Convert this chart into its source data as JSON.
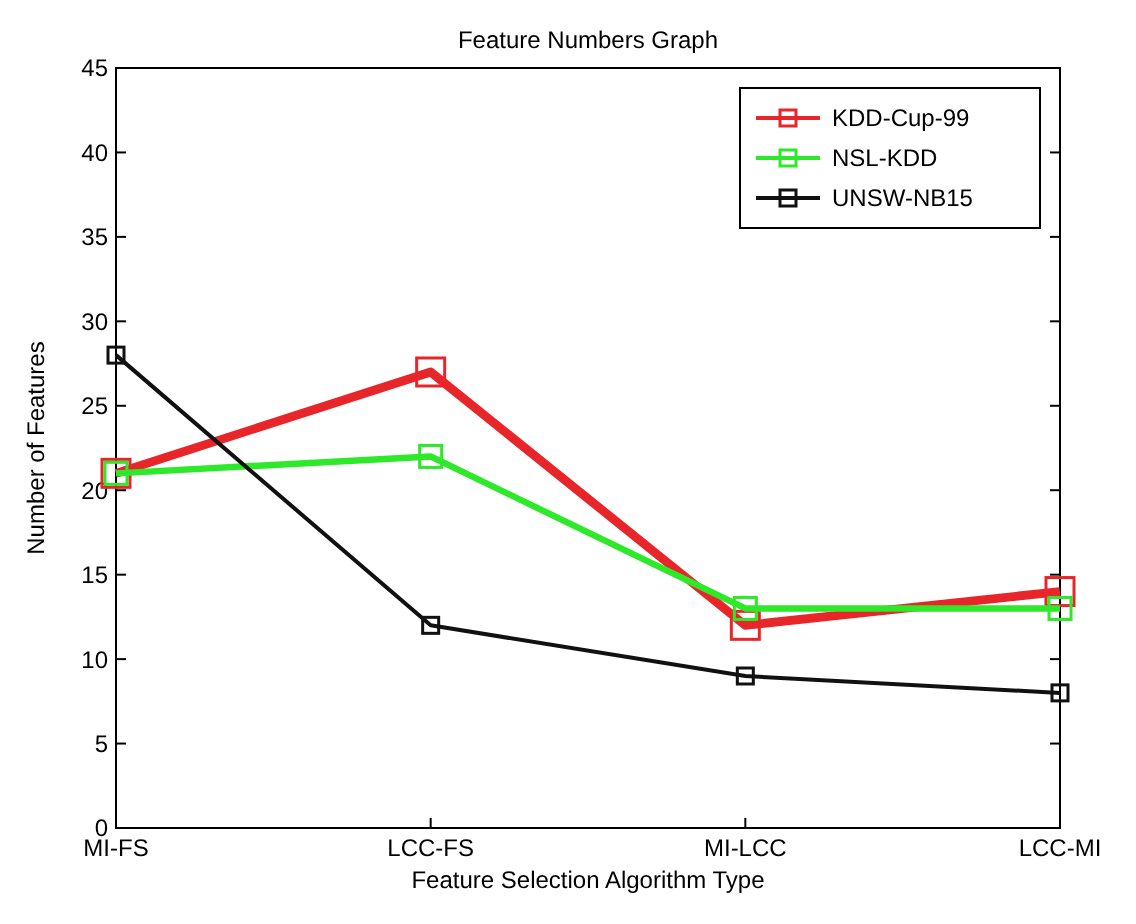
{
  "chart_data": {
    "type": "line",
    "title": "Feature Numbers Graph",
    "xlabel": "Feature Selection Algorithm Type",
    "ylabel": "Number of Features",
    "categories": [
      "MI-FS",
      "LCC-FS",
      "MI-LCC",
      "LCC-MI"
    ],
    "series": [
      {
        "name": "KDD-Cup-99",
        "color": "#e8262a",
        "values": [
          21,
          27,
          12,
          14
        ]
      },
      {
        "name": "NSL-KDD",
        "color": "#2ee82a",
        "values": [
          21,
          22,
          13,
          13
        ]
      },
      {
        "name": "UNSW-NB15",
        "color": "#111111",
        "values": [
          28,
          12,
          9,
          8
        ]
      }
    ],
    "ylim": [
      0,
      45
    ],
    "yticks": [
      0,
      5,
      10,
      15,
      20,
      25,
      30,
      35,
      40,
      45
    ],
    "grid": false,
    "legend": "top right",
    "marker": "square",
    "line_style": "solid"
  }
}
